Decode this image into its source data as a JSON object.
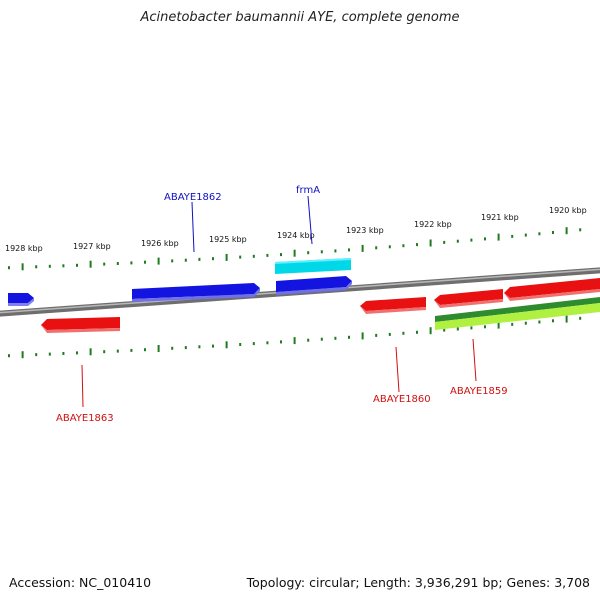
{
  "title": "Acinetobacter baumannii AYE, complete genome",
  "footer": {
    "accession": "Accession: NC_010410",
    "stats": "Topology: circular; Length: 3,936,291 bp; Genes: 3,708"
  },
  "colors": {
    "forward_gene": "#1414e0",
    "reverse_gene": "#e81010",
    "rna_gene": "#00d8e8",
    "dark_green_track": "#2e8b2e",
    "light_green_track": "#b0f040",
    "tick": "#207a20",
    "backbone": "#808080",
    "forward_label": "#1010c0",
    "reverse_label": "#d01010"
  },
  "tick_labels": [
    "1928 kbp",
    "1927 kbp",
    "1926 kbp",
    "1925 kbp",
    "1924 kbp",
    "1923 kbp",
    "1922 kbp",
    "1921 kbp",
    "1920 kbp"
  ],
  "gene_labels": {
    "ABAYE1862": "ABAYE1862",
    "frmA": "frmA",
    "ABAYE1863": "ABAYE1863",
    "ABAYE1860": "ABAYE1860",
    "ABAYE1859": "ABAYE1859"
  }
}
